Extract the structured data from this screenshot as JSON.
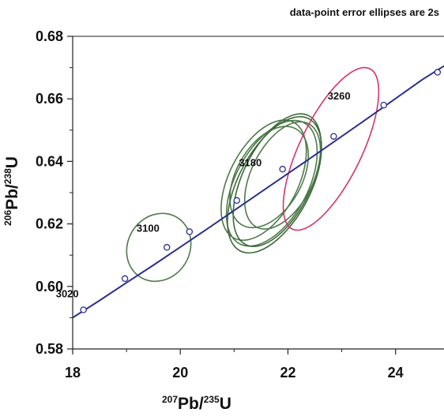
{
  "chart_data": {
    "type": "scatter",
    "title": "",
    "annotation": "data-point error ellipses are 2s",
    "xlabel": {
      "super": "207",
      "base": "Pb/",
      "super2": "235",
      "base2": "U"
    },
    "ylabel": {
      "super": "206",
      "base": "Pb/",
      "super2": "238",
      "base2": "U"
    },
    "xlim": [
      18,
      24.9
    ],
    "ylim": [
      0.58,
      0.68
    ],
    "x_ticks": [
      18,
      20,
      22,
      24
    ],
    "x_tick_labels": [
      "18",
      "20",
      "22",
      "24"
    ],
    "y_ticks": [
      0.58,
      0.6,
      0.62,
      0.64,
      0.66,
      0.68
    ],
    "y_tick_labels": [
      "0.58",
      "0.60",
      "0.62",
      "0.64",
      "0.66",
      "0.68"
    ],
    "concordia": {
      "color": "#2b2f8f",
      "points": [
        [
          18.0,
          0.59
        ],
        [
          18.5,
          0.5955
        ],
        [
          19.0,
          0.6012
        ],
        [
          19.5,
          0.6068
        ],
        [
          20.0,
          0.6126
        ],
        [
          20.5,
          0.6184
        ],
        [
          21.0,
          0.6243
        ],
        [
          21.5,
          0.6302
        ],
        [
          22.0,
          0.6361
        ],
        [
          22.5,
          0.642
        ],
        [
          23.0,
          0.648
        ],
        [
          23.5,
          0.654
        ],
        [
          24.0,
          0.6601
        ],
        [
          24.5,
          0.6662
        ],
        [
          24.9,
          0.6705
        ]
      ],
      "age_markers": [
        {
          "x": 18.2,
          "y": 0.5925
        },
        {
          "x": 18.97,
          "y": 0.6025
        },
        {
          "x": 19.75,
          "y": 0.6125
        },
        {
          "x": 20.17,
          "y": 0.6175
        },
        {
          "x": 21.05,
          "y": 0.6275
        },
        {
          "x": 21.9,
          "y": 0.6375
        },
        {
          "x": 22.85,
          "y": 0.648
        },
        {
          "x": 23.78,
          "y": 0.658
        },
        {
          "x": 24.78,
          "y": 0.6685
        }
      ],
      "age_labels": [
        {
          "text": "3020",
          "x": 17.9,
          "y": 0.5965
        },
        {
          "text": "3100",
          "x": 19.4,
          "y": 0.6175
        },
        {
          "text": "3180",
          "x": 21.3,
          "y": 0.6385
        },
        {
          "text": "3260",
          "x": 22.95,
          "y": 0.6598
        }
      ]
    },
    "ellipses": [
      {
        "cx": 19.6,
        "cy": 0.6125,
        "rx": 0.34,
        "ry": 0.018,
        "angle": 0,
        "tilt": 0.75,
        "color": "#4e7a4a"
      },
      {
        "cx": 21.55,
        "cy": 0.634,
        "rx": 0.55,
        "ry": 0.02,
        "angle": 0,
        "tilt": 0.9,
        "color": "#4e7a4a"
      },
      {
        "cx": 21.7,
        "cy": 0.633,
        "rx": 0.6,
        "ry": 0.021,
        "angle": 0,
        "tilt": 0.86,
        "color": "#4e7a4a"
      },
      {
        "cx": 21.8,
        "cy": 0.634,
        "rx": 0.58,
        "ry": 0.02,
        "angle": 0,
        "tilt": 0.95,
        "color": "#3d6a3a"
      },
      {
        "cx": 21.65,
        "cy": 0.635,
        "rx": 0.5,
        "ry": 0.019,
        "angle": 0,
        "tilt": 0.82,
        "color": "#4e7a4a"
      },
      {
        "cx": 21.9,
        "cy": 0.6355,
        "rx": 0.48,
        "ry": 0.018,
        "angle": 0,
        "tilt": 0.92,
        "color": "#4e7a4a"
      },
      {
        "cx": 21.75,
        "cy": 0.6325,
        "rx": 0.64,
        "ry": 0.021,
        "angle": 0,
        "tilt": 0.88,
        "color": "#3d6a3a"
      },
      {
        "cx": 22.8,
        "cy": 0.644,
        "rx": 0.72,
        "ry": 0.018,
        "angle": 0,
        "tilt": 0.95,
        "color": "#d6336c"
      }
    ]
  }
}
